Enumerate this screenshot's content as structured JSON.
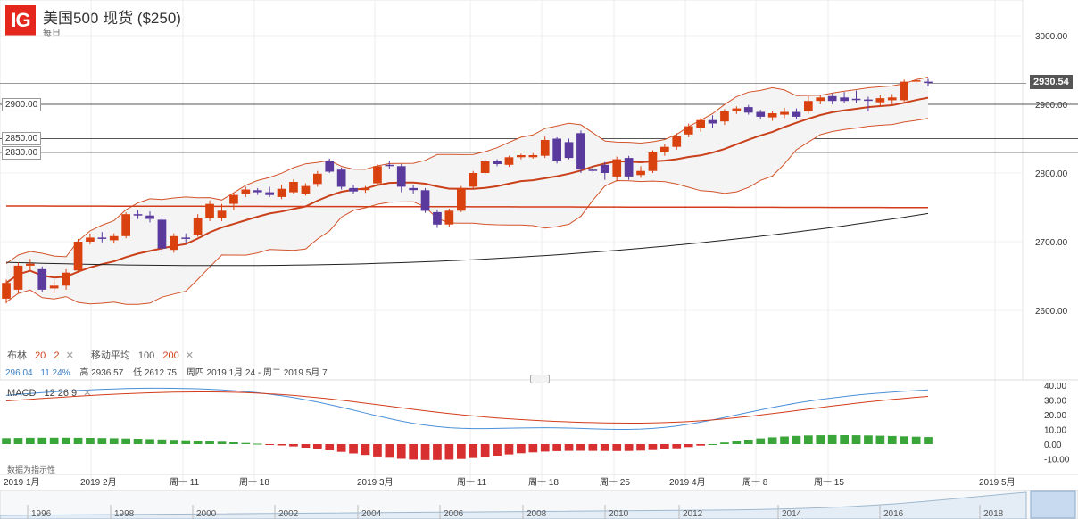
{
  "header": {
    "logo_text": "IG",
    "title": "美国500 现货 ($250)",
    "subtitle": "每日"
  },
  "price_axis": [
    "3000.00",
    "2900.00",
    "2800.00",
    "2700.00",
    "2600.00"
  ],
  "last_price_tag": "2930.54",
  "horizontal_levels": [
    "2900.00",
    "2850.00",
    "2830.00"
  ],
  "indicators": {
    "bollinger_name": "布林",
    "bollinger_period": "20",
    "bollinger_dev": "2",
    "ma_name": "移动平均",
    "ma_period1": "100",
    "ma_period2": "200",
    "remove_symbol": "✕",
    "stats_values": [
      "296.04",
      "11.24%"
    ],
    "stats_high": "高 2936.57",
    "stats_low": "低 2612.75",
    "stats_range": "周四 2019 1月 24 - 周二 2019 5月 7"
  },
  "macd": {
    "name": "MACD",
    "params": "12  26  9",
    "axis": [
      "40.00",
      "30.00",
      "20.00",
      "10.00",
      "0.00",
      "-10.00"
    ]
  },
  "tech_label": "数据为指示性",
  "time_axis": [
    "2019 1月",
    "2019 2月",
    "周一 11",
    "周一 18",
    "2019 3月",
    "周一 11",
    "周一 18",
    "周一 25",
    "2019 4月",
    "周一 8",
    "周一 15",
    "2019 5月"
  ],
  "navigator_years": [
    "1996",
    "1998",
    "2000",
    "2002",
    "2004",
    "2006",
    "2008",
    "2010",
    "2012",
    "2014",
    "2016",
    "2018"
  ],
  "colors": {
    "up": "#d9420f",
    "down": "#5b3a9e",
    "bollinger": "#d3532a",
    "ma100": "#c9401a",
    "ma200": "#222222",
    "macd_line": "#4a90d9",
    "signal_line": "#d33c1a",
    "hist_pos": "#3aa63a",
    "hist_neg": "#d83030"
  },
  "chart_data": {
    "type": "candlestick",
    "y_range": [
      2560,
      3020
    ],
    "candles": [
      {
        "o": 2617,
        "c": 2640,
        "h": 2645,
        "l": 2610
      },
      {
        "o": 2630,
        "c": 2665,
        "h": 2670,
        "l": 2625
      },
      {
        "o": 2665,
        "c": 2668,
        "h": 2675,
        "l": 2658
      },
      {
        "o": 2660,
        "c": 2630,
        "h": 2664,
        "l": 2626
      },
      {
        "o": 2632,
        "c": 2636,
        "h": 2645,
        "l": 2625
      },
      {
        "o": 2636,
        "c": 2655,
        "h": 2660,
        "l": 2630
      },
      {
        "o": 2658,
        "c": 2700,
        "h": 2704,
        "l": 2655
      },
      {
        "o": 2700,
        "c": 2706,
        "h": 2712,
        "l": 2696
      },
      {
        "o": 2706,
        "c": 2705,
        "h": 2714,
        "l": 2699
      },
      {
        "o": 2702,
        "c": 2708,
        "h": 2712,
        "l": 2698
      },
      {
        "o": 2708,
        "c": 2740,
        "h": 2743,
        "l": 2705
      },
      {
        "o": 2740,
        "c": 2738,
        "h": 2746,
        "l": 2733
      },
      {
        "o": 2738,
        "c": 2733,
        "h": 2744,
        "l": 2728
      },
      {
        "o": 2732,
        "c": 2690,
        "h": 2735,
        "l": 2684
      },
      {
        "o": 2688,
        "c": 2708,
        "h": 2712,
        "l": 2684
      },
      {
        "o": 2706,
        "c": 2705,
        "h": 2712,
        "l": 2698
      },
      {
        "o": 2710,
        "c": 2735,
        "h": 2740,
        "l": 2707
      },
      {
        "o": 2735,
        "c": 2755,
        "h": 2760,
        "l": 2730
      },
      {
        "o": 2735,
        "c": 2745,
        "h": 2755,
        "l": 2730
      },
      {
        "o": 2755,
        "c": 2768,
        "h": 2771,
        "l": 2746
      },
      {
        "o": 2769,
        "c": 2776,
        "h": 2780,
        "l": 2765
      },
      {
        "o": 2775,
        "c": 2772,
        "h": 2778,
        "l": 2768
      },
      {
        "o": 2772,
        "c": 2768,
        "h": 2780,
        "l": 2765
      },
      {
        "o": 2765,
        "c": 2777,
        "h": 2783,
        "l": 2762
      },
      {
        "o": 2772,
        "c": 2787,
        "h": 2791,
        "l": 2770
      },
      {
        "o": 2770,
        "c": 2781,
        "h": 2785,
        "l": 2767
      },
      {
        "o": 2784,
        "c": 2799,
        "h": 2803,
        "l": 2780
      },
      {
        "o": 2817,
        "c": 2802,
        "h": 2821,
        "l": 2800
      },
      {
        "o": 2805,
        "c": 2780,
        "h": 2808,
        "l": 2776
      },
      {
        "o": 2778,
        "c": 2773,
        "h": 2783,
        "l": 2770
      },
      {
        "o": 2775,
        "c": 2778,
        "h": 2781,
        "l": 2771
      },
      {
        "o": 2785,
        "c": 2810,
        "h": 2813,
        "l": 2782
      },
      {
        "o": 2812,
        "c": 2810,
        "h": 2818,
        "l": 2806
      },
      {
        "o": 2810,
        "c": 2780,
        "h": 2813,
        "l": 2772
      },
      {
        "o": 2778,
        "c": 2775,
        "h": 2782,
        "l": 2770
      },
      {
        "o": 2775,
        "c": 2745,
        "h": 2778,
        "l": 2742
      },
      {
        "o": 2743,
        "c": 2725,
        "h": 2747,
        "l": 2720
      },
      {
        "o": 2725,
        "c": 2745,
        "h": 2748,
        "l": 2722
      },
      {
        "o": 2745,
        "c": 2778,
        "h": 2781,
        "l": 2743
      },
      {
        "o": 2780,
        "c": 2800,
        "h": 2803,
        "l": 2778
      },
      {
        "o": 2800,
        "c": 2817,
        "h": 2820,
        "l": 2797
      },
      {
        "o": 2817,
        "c": 2813,
        "h": 2820,
        "l": 2810
      },
      {
        "o": 2812,
        "c": 2823,
        "h": 2825,
        "l": 2809
      },
      {
        "o": 2823,
        "c": 2826,
        "h": 2828,
        "l": 2820
      },
      {
        "o": 2823,
        "c": 2826,
        "h": 2829,
        "l": 2821
      },
      {
        "o": 2825,
        "c": 2848,
        "h": 2853,
        "l": 2822
      },
      {
        "o": 2850,
        "c": 2818,
        "h": 2852,
        "l": 2814
      },
      {
        "o": 2845,
        "c": 2822,
        "h": 2850,
        "l": 2820
      },
      {
        "o": 2858,
        "c": 2805,
        "h": 2862,
        "l": 2800
      },
      {
        "o": 2805,
        "c": 2803,
        "h": 2810,
        "l": 2800
      },
      {
        "o": 2812,
        "c": 2800,
        "h": 2816,
        "l": 2790
      },
      {
        "o": 2795,
        "c": 2820,
        "h": 2824,
        "l": 2788
      },
      {
        "o": 2822,
        "c": 2795,
        "h": 2825,
        "l": 2790
      },
      {
        "o": 2797,
        "c": 2803,
        "h": 2810,
        "l": 2793
      },
      {
        "o": 2803,
        "c": 2830,
        "h": 2833,
        "l": 2800
      },
      {
        "o": 2830,
        "c": 2838,
        "h": 2842,
        "l": 2825
      },
      {
        "o": 2838,
        "c": 2854,
        "h": 2858,
        "l": 2834
      },
      {
        "o": 2856,
        "c": 2868,
        "h": 2872,
        "l": 2852
      },
      {
        "o": 2866,
        "c": 2877,
        "h": 2880,
        "l": 2860
      },
      {
        "o": 2877,
        "c": 2872,
        "h": 2884,
        "l": 2866
      },
      {
        "o": 2875,
        "c": 2890,
        "h": 2893,
        "l": 2870
      },
      {
        "o": 2890,
        "c": 2894,
        "h": 2897,
        "l": 2886
      },
      {
        "o": 2896,
        "c": 2888,
        "h": 2899,
        "l": 2885
      },
      {
        "o": 2889,
        "c": 2882,
        "h": 2892,
        "l": 2878
      },
      {
        "o": 2881,
        "c": 2887,
        "h": 2890,
        "l": 2876
      },
      {
        "o": 2885,
        "c": 2889,
        "h": 2895,
        "l": 2880
      },
      {
        "o": 2889,
        "c": 2882,
        "h": 2894,
        "l": 2878
      },
      {
        "o": 2890,
        "c": 2905,
        "h": 2912,
        "l": 2886
      },
      {
        "o": 2905,
        "c": 2910,
        "h": 2914,
        "l": 2900
      },
      {
        "o": 2912,
        "c": 2905,
        "h": 2916,
        "l": 2900
      },
      {
        "o": 2910,
        "c": 2905,
        "h": 2918,
        "l": 2902
      },
      {
        "o": 2908,
        "c": 2906,
        "h": 2920,
        "l": 2902
      },
      {
        "o": 2907,
        "c": 2905,
        "h": 2911,
        "l": 2890
      },
      {
        "o": 2903,
        "c": 2909,
        "h": 2913,
        "l": 2896
      },
      {
        "o": 2906,
        "c": 2910,
        "h": 2915,
        "l": 2900
      },
      {
        "o": 2906,
        "c": 2933,
        "h": 2936,
        "l": 2904
      },
      {
        "o": 2934,
        "c": 2935,
        "h": 2938,
        "l": 2930
      },
      {
        "o": 2933,
        "c": 2931,
        "h": 2937,
        "l": 2926
      }
    ]
  }
}
